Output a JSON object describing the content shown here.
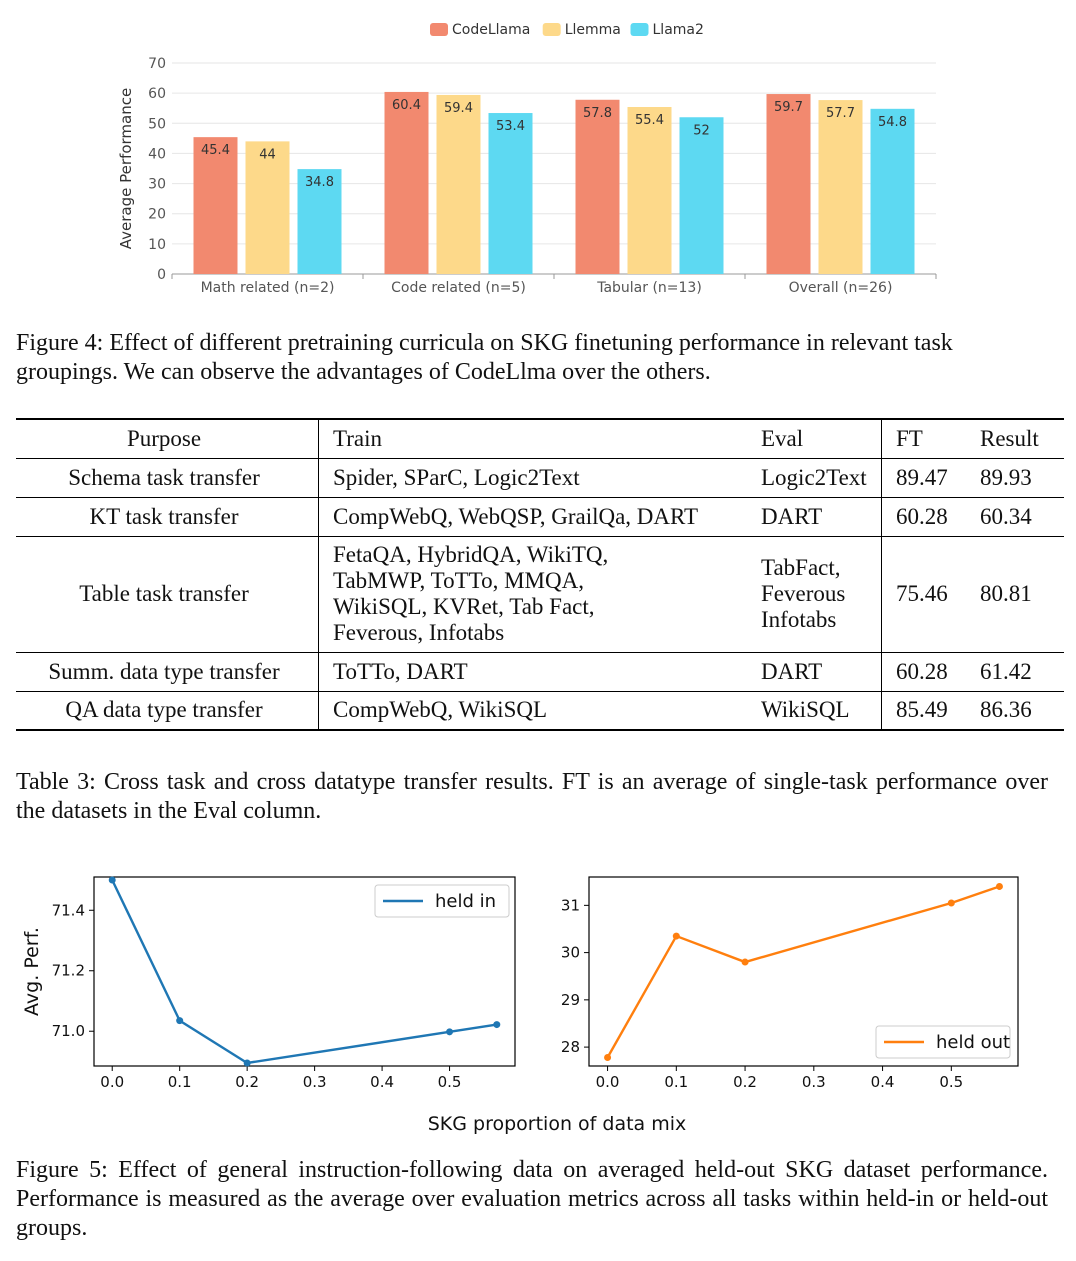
{
  "figure4": {
    "caption": "Figure 4: Effect of different pretraining curricula on SKG finetuning performance in relevant task groupings. We can observe the advantages of CodeLlma over the others.",
    "chart_data": {
      "type": "bar",
      "categories": [
        "Math related (n=2)",
        "Code related (n=5)",
        "Tabular (n=13)",
        "Overall (n=26)"
      ],
      "series": [
        {
          "name": "CodeLlama",
          "values": [
            45.4,
            60.4,
            57.8,
            59.7
          ],
          "color": "#f2896f"
        },
        {
          "name": "Llemma",
          "values": [
            44,
            59.4,
            55.4,
            57.7
          ],
          "color": "#fdd98a"
        },
        {
          "name": "Llama2",
          "values": [
            34.8,
            53.4,
            52,
            54.8
          ],
          "color": "#5dd9f2"
        }
      ],
      "ylabel": "Average Performance",
      "ylim": [
        0,
        70
      ],
      "yticks": [
        0,
        10,
        20,
        30,
        40,
        50,
        60,
        70
      ],
      "grid": true,
      "legend": "top-center"
    }
  },
  "table3": {
    "headers": {
      "purpose": "Purpose",
      "train": "Train",
      "eval": "Eval",
      "ft": "FT",
      "result": "Result"
    },
    "rows": [
      {
        "purpose": "Schema task transfer",
        "train": [
          "Spider, SParC, Logic2Text"
        ],
        "eval": [
          "Logic2Text"
        ],
        "ft": "89.47",
        "result": "89.93"
      },
      {
        "purpose": "KT task transfer",
        "train": [
          "CompWebQ, WebQSP, GrailQa, DART"
        ],
        "eval": [
          "DART"
        ],
        "ft": "60.28",
        "result": "60.34"
      },
      {
        "purpose": "Table task transfer",
        "train": [
          "FetaQA, HybridQA, WikiTQ,",
          "TabMWP, ToTTo, MMQA,",
          "WikiSQL, KVRet, Tab Fact,",
          "Feverous, Infotabs"
        ],
        "eval": [
          "TabFact,",
          "Feverous",
          "Infotabs"
        ],
        "ft": "75.46",
        "result": "80.81"
      },
      {
        "purpose": "Summ. data type transfer",
        "train": [
          "ToTTo, DART"
        ],
        "eval": [
          "DART"
        ],
        "ft": "60.28",
        "result": "61.42"
      },
      {
        "purpose": "QA data type transfer",
        "train": [
          "CompWebQ, WikiSQL"
        ],
        "eval": [
          "WikiSQL"
        ],
        "ft": "85.49",
        "result": "86.36"
      }
    ],
    "caption": "Table 3: Cross task and cross datatype transfer results. FT is an average of single-task performance over the datasets in the Eval column."
  },
  "figure5": {
    "caption": "Figure 5: Effect of general instruction-following data on averaged held-out SKG dataset performance. Performance is measured as the average over evaluation metrics across all tasks within held-in or held-out groups.",
    "shared_xlabel": "SKG proportion of data mix",
    "chart_data": [
      {
        "type": "line",
        "series": [
          {
            "name": "held in",
            "color": "#1f77b4",
            "x": [
              0.0,
              0.1,
              0.2,
              0.5,
              0.57
            ],
            "y": [
              71.5,
              71.035,
              70.895,
              70.998,
              71.022
            ]
          }
        ],
        "xticks": [
          "0.0",
          "0.1",
          "0.2",
          "0.3",
          "0.4",
          "0.5"
        ],
        "xtick_values": [
          0.0,
          0.1,
          0.2,
          0.3,
          0.4,
          0.5
        ],
        "yticks": [
          "71.0",
          "71.2",
          "71.4"
        ],
        "ytick_values": [
          71.0,
          71.2,
          71.4
        ],
        "ylabel": "Avg. Perf.",
        "xlim": [
          -0.027,
          0.597
        ],
        "ylim": [
          70.885,
          71.51
        ],
        "legend": "upper right"
      },
      {
        "type": "line",
        "series": [
          {
            "name": "held out",
            "color": "#ff7f0e",
            "x": [
              0.0,
              0.1,
              0.2,
              0.5,
              0.57
            ],
            "y": [
              27.78,
              30.35,
              29.8,
              31.05,
              31.4
            ]
          }
        ],
        "xticks": [
          "0.0",
          "0.1",
          "0.2",
          "0.3",
          "0.4",
          "0.5"
        ],
        "xtick_values": [
          0.0,
          0.1,
          0.2,
          0.3,
          0.4,
          0.5
        ],
        "yticks": [
          "28",
          "29",
          "30",
          "31"
        ],
        "ytick_values": [
          28,
          29,
          30,
          31
        ],
        "ylabel": "",
        "xlim": [
          -0.027,
          0.597
        ],
        "ylim": [
          27.6,
          31.6
        ],
        "legend": "lower right"
      }
    ]
  }
}
